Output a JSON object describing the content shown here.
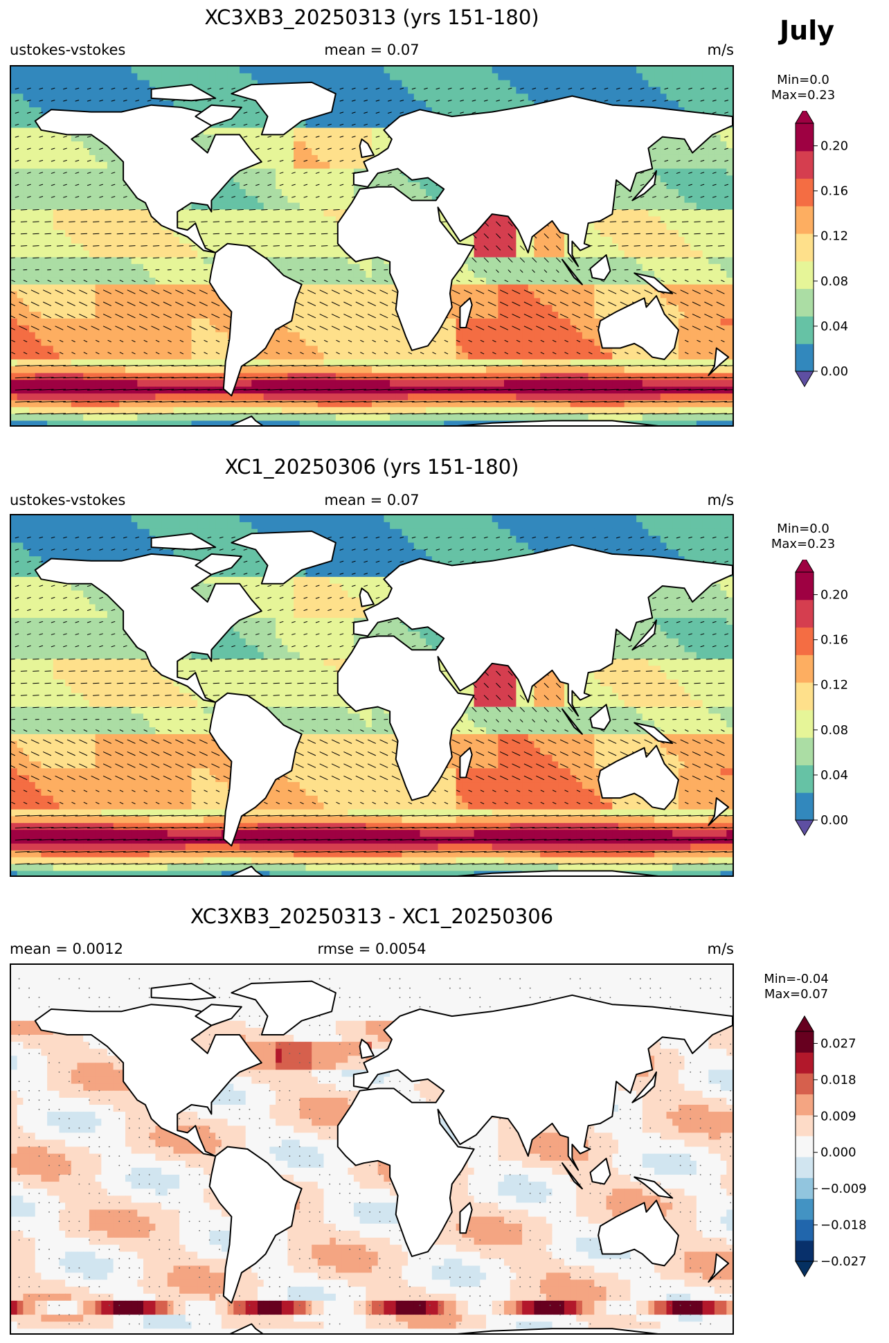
{
  "figure": {
    "month": "July"
  },
  "panels": [
    {
      "title": "XC3XB3_20250313 (yrs 151-180)",
      "left_label": "ustokes-vstokes",
      "center_label": "mean = 0.07",
      "units": "m/s",
      "minmax": [
        "Min=0.0",
        "Max=0.23"
      ],
      "colorbar": {
        "ticks": [
          "0.00",
          "0.04",
          "0.08",
          "0.12",
          "0.16",
          "0.20"
        ],
        "colors": [
          "#3288bd",
          "#66c2a5",
          "#abdda4",
          "#e6f598",
          "#fee08b",
          "#fdae61",
          "#f46d43",
          "#d53e4f",
          "#9e0142"
        ],
        "under": "#5e4fa2",
        "over": "#9e0142"
      }
    },
    {
      "title": "XC1_20250306 (yrs 151-180)",
      "left_label": "ustokes-vstokes",
      "center_label": "mean = 0.07",
      "units": "m/s",
      "minmax": [
        "Min=0.0",
        "Max=0.23"
      ],
      "colorbar": {
        "ticks": [
          "0.00",
          "0.04",
          "0.08",
          "0.12",
          "0.16",
          "0.20"
        ],
        "colors": [
          "#3288bd",
          "#66c2a5",
          "#abdda4",
          "#e6f598",
          "#fee08b",
          "#fdae61",
          "#f46d43",
          "#d53e4f",
          "#9e0142"
        ],
        "under": "#5e4fa2",
        "over": "#9e0142"
      }
    },
    {
      "title": "XC3XB3_20250313 - XC1_20250306",
      "left_label": "mean = 0.0012",
      "center_label": "rmse = 0.0054",
      "units": "m/s",
      "minmax": [
        "Min=-0.04",
        "Max=0.07"
      ],
      "colorbar": {
        "ticks": [
          "−0.027",
          "−0.018",
          "−0.009",
          "0.000",
          "0.009",
          "0.018",
          "0.027"
        ],
        "colors": [
          "#08306b",
          "#2166ac",
          "#4393c3",
          "#92c5de",
          "#d1e5f0",
          "#f7f7f7",
          "#fddbc7",
          "#f4a582",
          "#d6604d",
          "#b2182b",
          "#67001f"
        ],
        "under": "#053061",
        "over": "#67001f"
      }
    }
  ]
}
